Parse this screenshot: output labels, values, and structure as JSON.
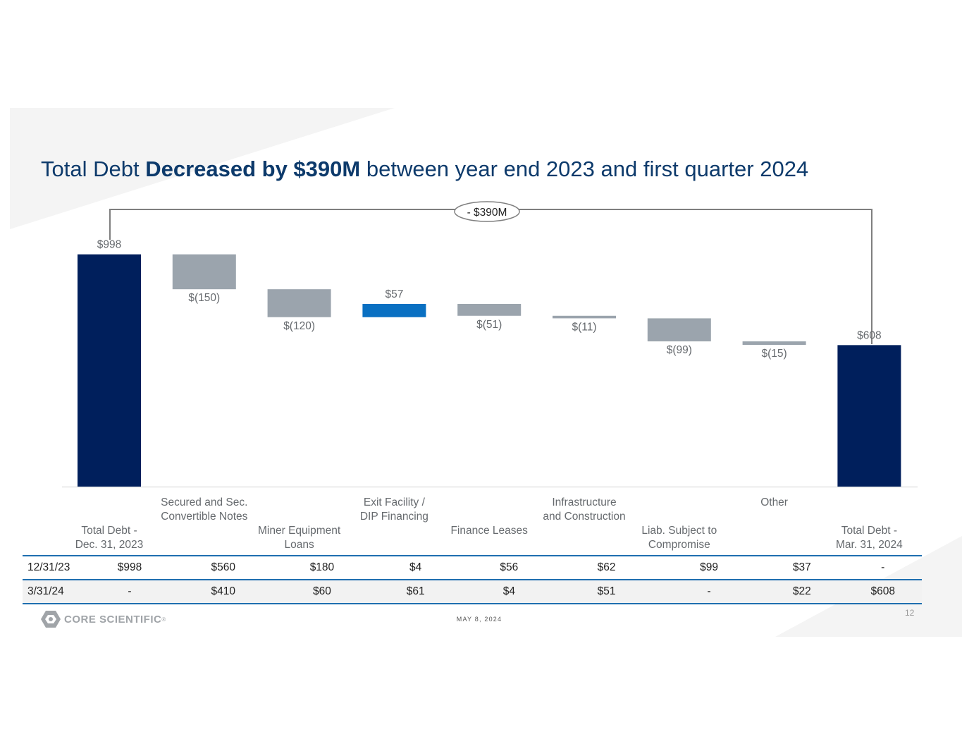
{
  "title": {
    "pre": "Total Debt ",
    "bold": "Decreased by $390M",
    "post": " between year end 2023 and first quarter 2024"
  },
  "bracket_label": "- $390M",
  "chart_data": {
    "type": "waterfall",
    "title": "Total Debt Decreased by $390M between year end 2023 and first quarter 2024",
    "ylim": [
      0,
      1000
    ],
    "colors": {
      "total": "#001f5c",
      "decrease": "#9ba4ad",
      "increase": "#0a70c2"
    },
    "steps": [
      {
        "name": "Total Debt - Dec. 31, 2023",
        "kind": "total",
        "value": 998,
        "label": "$998"
      },
      {
        "name": "Secured and Sec. Convertible Notes",
        "kind": "decrease",
        "value": -150,
        "label": "$(150)"
      },
      {
        "name": "Miner Equipment Loans",
        "kind": "decrease",
        "value": -120,
        "label": "$(120)"
      },
      {
        "name": "Exit Facility / DIP Financing",
        "kind": "increase",
        "value": 57,
        "label": "$57"
      },
      {
        "name": "Finance Leases",
        "kind": "decrease",
        "value": -51,
        "label": "$(51)"
      },
      {
        "name": "Infrastructure and Construction",
        "kind": "decrease",
        "value": -11,
        "label": "$(11)"
      },
      {
        "name": "Liab. Subject to Compromise",
        "kind": "decrease",
        "value": -99,
        "label": "$(99)"
      },
      {
        "name": "Other",
        "kind": "decrease",
        "value": -15,
        "label": "$(15)"
      },
      {
        "name": "Total Debt - Mar. 31, 2024",
        "kind": "total",
        "value": 608,
        "label": "$608"
      }
    ]
  },
  "categories": [
    "Total Debt -\nDec. 31, 2023",
    "Secured and Sec.\nConvertible Notes",
    "Miner Equipment\nLoans",
    "Exit Facility /\nDIP Financing",
    "Finance Leases",
    "Infrastructure\nand Construction",
    "Liab. Subject to\nCompromise",
    "Other",
    "Total Debt -\nMar. 31, 2024"
  ],
  "table": {
    "rows": [
      {
        "label": "12/31/23",
        "values": [
          "$998",
          "$560",
          "$180",
          "$4",
          "$56",
          "$62",
          "$99",
          "$37",
          "-"
        ]
      },
      {
        "label": "3/31/24",
        "values": [
          "-",
          "$410",
          "$60",
          "$61",
          "$4",
          "$51",
          "-",
          "$22",
          "$608"
        ]
      }
    ]
  },
  "footer": {
    "logo_text": "CORE SCIENTIFIC",
    "logo_mark": "®",
    "date": "MAY 8, 2024",
    "page": "12"
  }
}
